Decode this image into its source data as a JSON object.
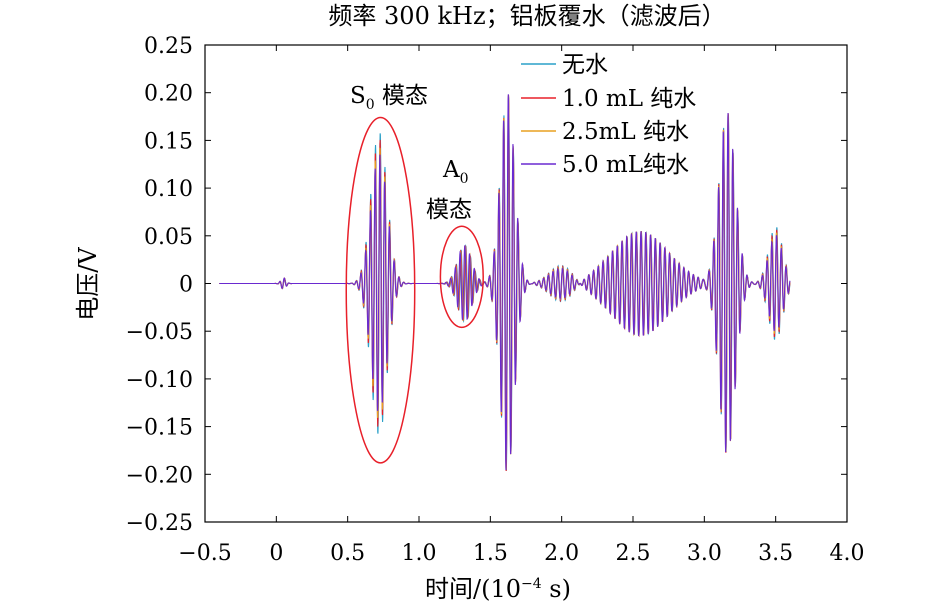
{
  "chart_data": {
    "type": "line",
    "title": "频率 300 kHz；铝板覆水（滤波后）",
    "xlabel_prefix": "时间/(10",
    "xlabel_exp": "−4",
    "xlabel_suffix": " s)",
    "ylabel": "电压/V",
    "xlim": [
      -0.5,
      4.0
    ],
    "ylim": [
      -0.25,
      0.25
    ],
    "x_ticks": [
      -0.5,
      0,
      0.5,
      1.0,
      1.5,
      2.0,
      2.5,
      3.0,
      3.5,
      4.0
    ],
    "x_tick_labels": [
      "−0.5",
      "0",
      "0.5",
      "1.0",
      "1.5",
      "2.0",
      "2.5",
      "3.0",
      "3.5",
      "4.0"
    ],
    "y_ticks": [
      0.25,
      0.2,
      0.15,
      0.1,
      0.05,
      0,
      -0.05,
      -0.1,
      -0.15,
      -0.2,
      -0.25
    ],
    "y_tick_labels": [
      "0.25",
      "0.20",
      "0.15",
      "0.10",
      "0.05",
      "0",
      "−0.05",
      "−0.10",
      "−0.15",
      "−0.20",
      "−0.25"
    ],
    "x_range": [
      -0.4,
      3.6
    ],
    "series": [
      {
        "name": "无水",
        "color": "#2aa0c8"
      },
      {
        "name": "1.0 mL 纯水",
        "color": "#e8202a"
      },
      {
        "name": "2.5mL 纯水",
        "color": "#e8a020"
      },
      {
        "name": "5.0 mL纯水",
        "color": "#6a2ad0"
      }
    ],
    "packets": [
      {
        "center": 0.05,
        "width": 0.025,
        "amp": 0.006,
        "freq": 3.0
      },
      {
        "center": 0.72,
        "width": 0.08,
        "amp": 0.16,
        "freq": 3.0
      },
      {
        "center": 1.32,
        "width": 0.07,
        "amp": 0.04,
        "freq": 3.0
      },
      {
        "center": 1.62,
        "width": 0.07,
        "amp": 0.2,
        "freq": 3.0
      },
      {
        "center": 2.0,
        "width": 0.12,
        "amp": 0.02,
        "freq": 3.0
      },
      {
        "center": 2.55,
        "width": 0.28,
        "amp": 0.055,
        "freq": 3.0
      },
      {
        "center": 3.16,
        "width": 0.08,
        "amp": 0.18,
        "freq": 3.0
      },
      {
        "center": 3.5,
        "width": 0.07,
        "amp": 0.06,
        "freq": 3.0
      }
    ],
    "annotations": [
      {
        "label": "S",
        "sub": "0",
        "suffix": " 模态",
        "ellipse": {
          "cx": 0.73,
          "cy": -0.007,
          "rx": 0.24,
          "ry": 0.181
        }
      },
      {
        "label": "A",
        "sub": "0",
        "suffix": "",
        "line2": "模态",
        "ellipse": {
          "cx": 1.3,
          "cy": 0.007,
          "rx": 0.15,
          "ry": 0.053
        }
      }
    ]
  }
}
